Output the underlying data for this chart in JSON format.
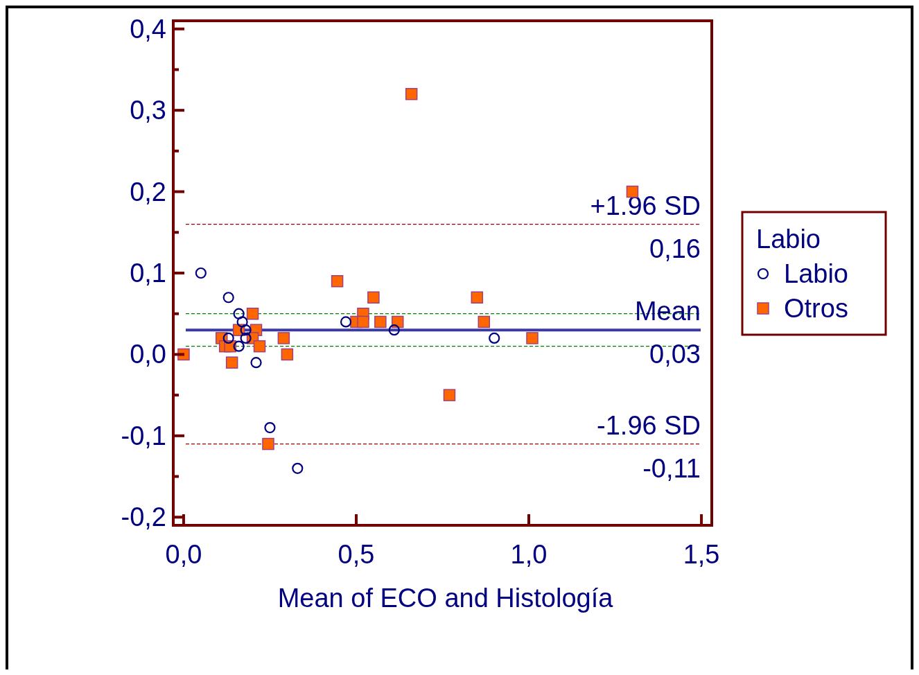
{
  "chart_data": {
    "type": "scatter",
    "xlabel": "Mean of ECO and Histología",
    "legend_title": "Labio",
    "legend": "right",
    "grid": false,
    "xlim": [
      -0.03,
      1.53
    ],
    "ylim": [
      -0.21,
      0.41
    ],
    "xticks": [
      {
        "value": 0,
        "label": "0,0"
      },
      {
        "value": 0.5,
        "label": "0,5"
      },
      {
        "value": 1,
        "label": "1,0"
      },
      {
        "value": 1.5,
        "label": "1,5"
      }
    ],
    "yticks": [
      {
        "value": -0.2,
        "label": "-0,2"
      },
      {
        "value": -0.15,
        "label": null
      },
      {
        "value": -0.1,
        "label": "-0,1"
      },
      {
        "value": -0.05,
        "label": null
      },
      {
        "value": 0,
        "label": "0,0"
      },
      {
        "value": 0.05,
        "label": null
      },
      {
        "value": 0.1,
        "label": "0,1"
      },
      {
        "value": 0.15,
        "label": null
      },
      {
        "value": 0.2,
        "label": "0,2"
      },
      {
        "value": 0.25,
        "label": null
      },
      {
        "value": 0.3,
        "label": "0,3"
      },
      {
        "value": 0.35,
        "label": null
      },
      {
        "value": 0.4,
        "label": "0,4"
      }
    ],
    "series": [
      {
        "name": "Labio",
        "color": "#000080",
        "marker": "circle",
        "x": [
          0.05,
          0.13,
          0.16,
          0.17,
          0.18,
          0.13,
          0.18,
          0.16,
          0.21,
          0.25,
          0.33,
          0.47,
          0.61,
          0.9
        ],
        "values": [
          0.1,
          0.07,
          0.05,
          0.04,
          0.03,
          0.02,
          0.02,
          0.01,
          -0.01,
          -0.09,
          -0.14,
          0.04,
          0.03,
          0.02
        ]
      },
      {
        "name": "Otros",
        "color": "#ff6600",
        "marker": "square",
        "x": [
          0,
          0.2,
          0.16,
          0.21,
          0.11,
          0.2,
          0.29,
          0.12,
          0.135,
          0.22,
          0.3,
          0.14,
          0.245,
          0.445,
          0.55,
          0.52,
          0.5,
          0.52,
          0.57,
          0.62,
          0.85,
          0.87,
          1.01,
          0.66,
          0.77,
          1.3
        ],
        "values": [
          0,
          0.05,
          0.03,
          0.03,
          0.02,
          0.02,
          0.02,
          0.01,
          0.01,
          0.01,
          0,
          -0.01,
          -0.11,
          0.09,
          0.07,
          0.05,
          0.04,
          0.04,
          0.04,
          0.04,
          0.07,
          0.04,
          0.02,
          0.32,
          -0.05,
          0.2
        ]
      }
    ],
    "ref_lines": [
      {
        "axis": "y",
        "value": 0.16,
        "label": "+1.96 SD",
        "color": "#a00000",
        "line_style": "dashed"
      },
      {
        "axis": "y",
        "value": 0.05,
        "label": null,
        "color": "#008000",
        "line_style": "dashed"
      },
      {
        "axis": "y",
        "value": 0.03,
        "label": "Mean",
        "color": "#3a3aa0",
        "line_style": "solid"
      },
      {
        "axis": "y",
        "value": 0.01,
        "label": null,
        "color": "#008000",
        "line_style": "dashed"
      },
      {
        "axis": "y",
        "value": -0.11,
        "label": "-1.96 SD",
        "color": "#a00000",
        "line_style": "dashed"
      }
    ],
    "annotations": [
      {
        "text": "0,16",
        "y": 0.16
      },
      {
        "text": "0,03",
        "y": 0.03
      },
      {
        "text": "-0,11",
        "y": -0.11
      }
    ]
  }
}
